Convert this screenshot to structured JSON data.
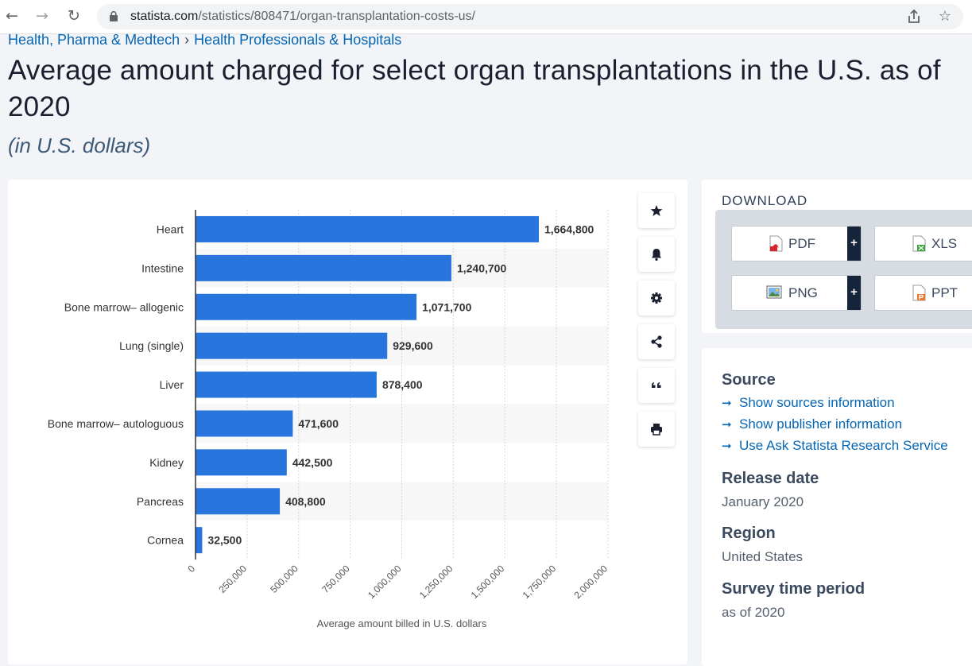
{
  "browser": {
    "url_domain": "statista.com",
    "url_path": "/statistics/808471/organ-transplantation-costs-us/"
  },
  "breadcrumb": {
    "item1": "Health, Pharma & Medtech",
    "separator": "›",
    "item2": "Health Professionals & Hospitals"
  },
  "page": {
    "title": "Average amount charged for select organ transplantations in the U.S. as of 2020",
    "subtitle": "(in U.S. dollars)"
  },
  "chart_data": {
    "type": "bar",
    "orientation": "horizontal",
    "categories": [
      "Heart",
      "Intestine",
      "Bone marrow– allogenic",
      "Lung (single)",
      "Liver",
      "Bone marrow– autologuous",
      "Kidney",
      "Pancreas",
      "Cornea"
    ],
    "values": [
      1664800,
      1240700,
      1071700,
      929600,
      878400,
      471600,
      442500,
      408800,
      32500
    ],
    "value_labels": [
      "1,664,800",
      "1,240,700",
      "1,071,700",
      "929,600",
      "878,400",
      "471,600",
      "442,500",
      "408,800",
      "32,500"
    ],
    "x_ticks": [
      "0",
      "250,000",
      "500,000",
      "750,000",
      "1,000,000",
      "1,250,000",
      "1,500,000",
      "1,750,000",
      "2,000,000"
    ],
    "xlabel": "Average amount billed in U.S. dollars",
    "xlim": [
      0,
      2000000
    ],
    "grid": true,
    "bar_color": "#2876dd"
  },
  "toolbar": {
    "icons": [
      "star-icon",
      "bell-icon",
      "gear-icon",
      "share-icon",
      "quote-icon",
      "print-icon"
    ]
  },
  "download": {
    "title": "DOWNLOAD",
    "pdf": "PDF",
    "xls": "XLS",
    "png": "PNG",
    "ppt": "PPT",
    "plus": "+"
  },
  "info": {
    "source_title": "Source",
    "links": [
      "Show sources information",
      "Show publisher information",
      "Use Ask Statista Research Service"
    ],
    "release_title": "Release date",
    "release_value": "January 2020",
    "region_title": "Region",
    "region_value": "United States",
    "period_title": "Survey time period",
    "period_value": "as of 2020"
  },
  "colors": {
    "accent": "#0666b4",
    "bar": "#2876dd",
    "dark_navy": "#16243a"
  }
}
